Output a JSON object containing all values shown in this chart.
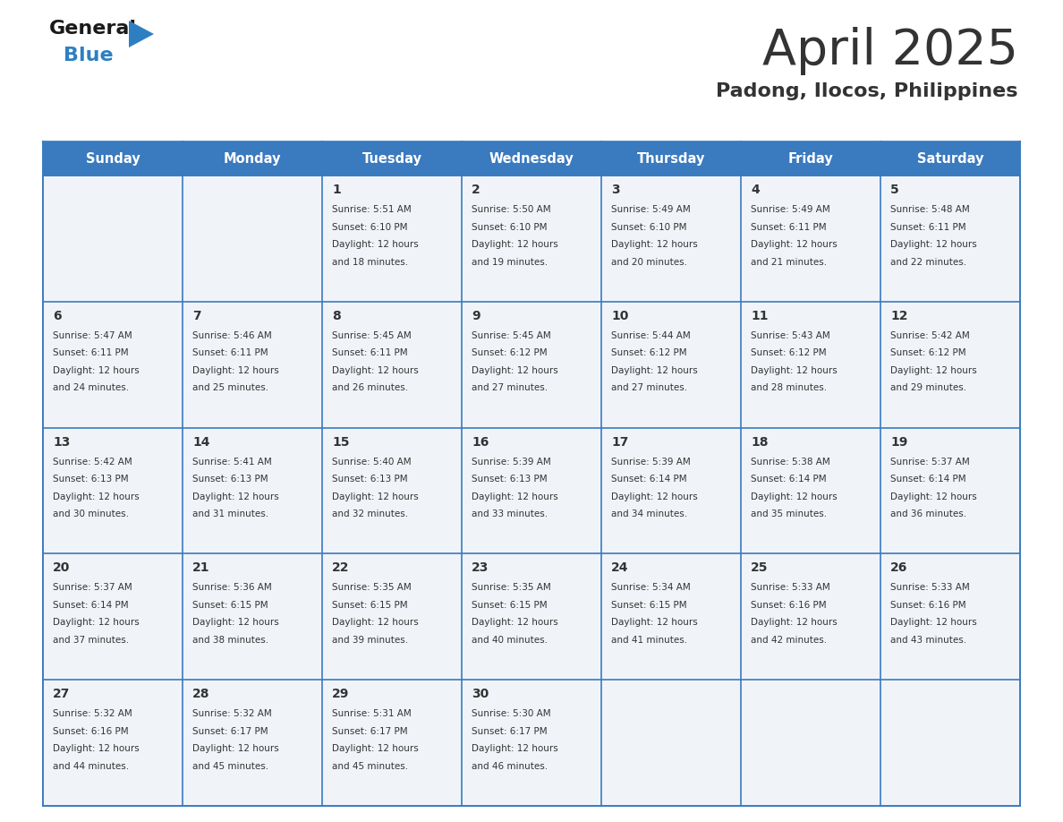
{
  "title": "April 2025",
  "subtitle": "Padong, Ilocos, Philippines",
  "header_bg": "#3a7abf",
  "header_text_color": "#ffffff",
  "cell_bg": "#f0f4f9",
  "border_color": "#3a7abf",
  "text_color": "#333333",
  "days_of_week": [
    "Sunday",
    "Monday",
    "Tuesday",
    "Wednesday",
    "Thursday",
    "Friday",
    "Saturday"
  ],
  "weeks": [
    [
      {
        "day": "",
        "info": ""
      },
      {
        "day": "",
        "info": ""
      },
      {
        "day": "1",
        "info": "Sunrise: 5:51 AM\nSunset: 6:10 PM\nDaylight: 12 hours\nand 18 minutes."
      },
      {
        "day": "2",
        "info": "Sunrise: 5:50 AM\nSunset: 6:10 PM\nDaylight: 12 hours\nand 19 minutes."
      },
      {
        "day": "3",
        "info": "Sunrise: 5:49 AM\nSunset: 6:10 PM\nDaylight: 12 hours\nand 20 minutes."
      },
      {
        "day": "4",
        "info": "Sunrise: 5:49 AM\nSunset: 6:11 PM\nDaylight: 12 hours\nand 21 minutes."
      },
      {
        "day": "5",
        "info": "Sunrise: 5:48 AM\nSunset: 6:11 PM\nDaylight: 12 hours\nand 22 minutes."
      }
    ],
    [
      {
        "day": "6",
        "info": "Sunrise: 5:47 AM\nSunset: 6:11 PM\nDaylight: 12 hours\nand 24 minutes."
      },
      {
        "day": "7",
        "info": "Sunrise: 5:46 AM\nSunset: 6:11 PM\nDaylight: 12 hours\nand 25 minutes."
      },
      {
        "day": "8",
        "info": "Sunrise: 5:45 AM\nSunset: 6:11 PM\nDaylight: 12 hours\nand 26 minutes."
      },
      {
        "day": "9",
        "info": "Sunrise: 5:45 AM\nSunset: 6:12 PM\nDaylight: 12 hours\nand 27 minutes."
      },
      {
        "day": "10",
        "info": "Sunrise: 5:44 AM\nSunset: 6:12 PM\nDaylight: 12 hours\nand 27 minutes."
      },
      {
        "day": "11",
        "info": "Sunrise: 5:43 AM\nSunset: 6:12 PM\nDaylight: 12 hours\nand 28 minutes."
      },
      {
        "day": "12",
        "info": "Sunrise: 5:42 AM\nSunset: 6:12 PM\nDaylight: 12 hours\nand 29 minutes."
      }
    ],
    [
      {
        "day": "13",
        "info": "Sunrise: 5:42 AM\nSunset: 6:13 PM\nDaylight: 12 hours\nand 30 minutes."
      },
      {
        "day": "14",
        "info": "Sunrise: 5:41 AM\nSunset: 6:13 PM\nDaylight: 12 hours\nand 31 minutes."
      },
      {
        "day": "15",
        "info": "Sunrise: 5:40 AM\nSunset: 6:13 PM\nDaylight: 12 hours\nand 32 minutes."
      },
      {
        "day": "16",
        "info": "Sunrise: 5:39 AM\nSunset: 6:13 PM\nDaylight: 12 hours\nand 33 minutes."
      },
      {
        "day": "17",
        "info": "Sunrise: 5:39 AM\nSunset: 6:14 PM\nDaylight: 12 hours\nand 34 minutes."
      },
      {
        "day": "18",
        "info": "Sunrise: 5:38 AM\nSunset: 6:14 PM\nDaylight: 12 hours\nand 35 minutes."
      },
      {
        "day": "19",
        "info": "Sunrise: 5:37 AM\nSunset: 6:14 PM\nDaylight: 12 hours\nand 36 minutes."
      }
    ],
    [
      {
        "day": "20",
        "info": "Sunrise: 5:37 AM\nSunset: 6:14 PM\nDaylight: 12 hours\nand 37 minutes."
      },
      {
        "day": "21",
        "info": "Sunrise: 5:36 AM\nSunset: 6:15 PM\nDaylight: 12 hours\nand 38 minutes."
      },
      {
        "day": "22",
        "info": "Sunrise: 5:35 AM\nSunset: 6:15 PM\nDaylight: 12 hours\nand 39 minutes."
      },
      {
        "day": "23",
        "info": "Sunrise: 5:35 AM\nSunset: 6:15 PM\nDaylight: 12 hours\nand 40 minutes."
      },
      {
        "day": "24",
        "info": "Sunrise: 5:34 AM\nSunset: 6:15 PM\nDaylight: 12 hours\nand 41 minutes."
      },
      {
        "day": "25",
        "info": "Sunrise: 5:33 AM\nSunset: 6:16 PM\nDaylight: 12 hours\nand 42 minutes."
      },
      {
        "day": "26",
        "info": "Sunrise: 5:33 AM\nSunset: 6:16 PM\nDaylight: 12 hours\nand 43 minutes."
      }
    ],
    [
      {
        "day": "27",
        "info": "Sunrise: 5:32 AM\nSunset: 6:16 PM\nDaylight: 12 hours\nand 44 minutes."
      },
      {
        "day": "28",
        "info": "Sunrise: 5:32 AM\nSunset: 6:17 PM\nDaylight: 12 hours\nand 45 minutes."
      },
      {
        "day": "29",
        "info": "Sunrise: 5:31 AM\nSunset: 6:17 PM\nDaylight: 12 hours\nand 45 minutes."
      },
      {
        "day": "30",
        "info": "Sunrise: 5:30 AM\nSunset: 6:17 PM\nDaylight: 12 hours\nand 46 minutes."
      },
      {
        "day": "",
        "info": ""
      },
      {
        "day": "",
        "info": ""
      },
      {
        "day": "",
        "info": ""
      }
    ]
  ],
  "logo_general_color": "#1a1a1a",
  "logo_blue_color": "#2e7fc2",
  "logo_triangle_color": "#2e7fc2"
}
